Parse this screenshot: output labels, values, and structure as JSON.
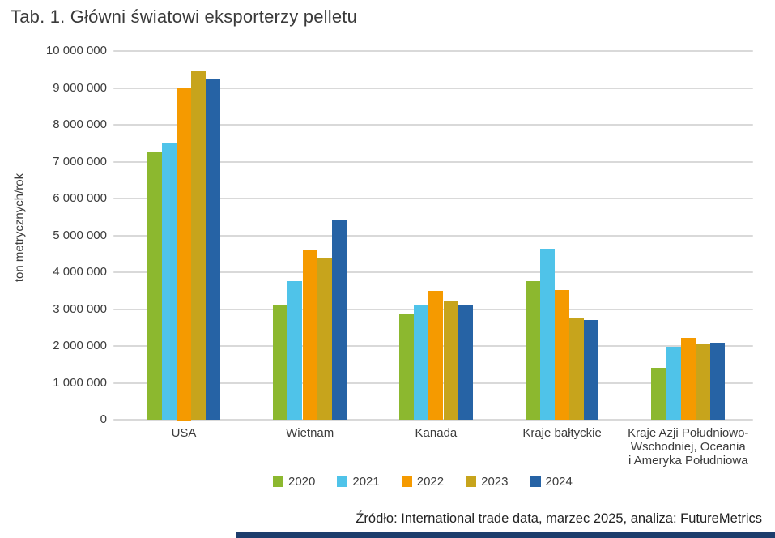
{
  "title": "Tab. 1. Główni światowi eksporterzy pelletu",
  "source_note": "Źródło: International trade data, marzec 2025, analiza: FutureMetrics",
  "footer_bar_color": "#1d3d6c",
  "chart_data": {
    "type": "bar",
    "title": "Tab. 1. Główni światowi eksporterzy pelletu",
    "xlabel": "",
    "ylabel": "ton metrycznych/rok",
    "ylim": [
      0,
      10000000
    ],
    "ytick_step": 1000000,
    "grid": true,
    "legend_position": "bottom",
    "categories": [
      "USA",
      "Wietnam",
      "Kanada",
      "Kraje bałtyckie",
      "Kraje Azji Południowo-Wschodniej, Oceania i Ameryka Południowa"
    ],
    "category_label_lines": [
      [
        "USA"
      ],
      [
        "Wietnam"
      ],
      [
        "Kanada"
      ],
      [
        "Kraje bałtyckie"
      ],
      [
        "Kraje Azji Południowo-",
        "Wschodniej, Oceania",
        "i Ameryka Południowa"
      ]
    ],
    "series": [
      {
        "name": "2020",
        "color": "#8cb82f",
        "values": [
          7250000,
          3130000,
          2860000,
          3760000,
          1400000
        ]
      },
      {
        "name": "2021",
        "color": "#4fc3e9",
        "values": [
          7520000,
          3750000,
          3120000,
          4640000,
          1970000
        ]
      },
      {
        "name": "2022",
        "color": "#f59a00",
        "values": [
          9000000,
          4590000,
          3490000,
          3510000,
          2210000
        ]
      },
      {
        "name": "2023",
        "color": "#c7a41c",
        "values": [
          9460000,
          4400000,
          3240000,
          2780000,
          2060000
        ]
      },
      {
        "name": "2024",
        "color": "#2663a5",
        "values": [
          9250000,
          5410000,
          3120000,
          2710000,
          2080000
        ]
      }
    ]
  }
}
